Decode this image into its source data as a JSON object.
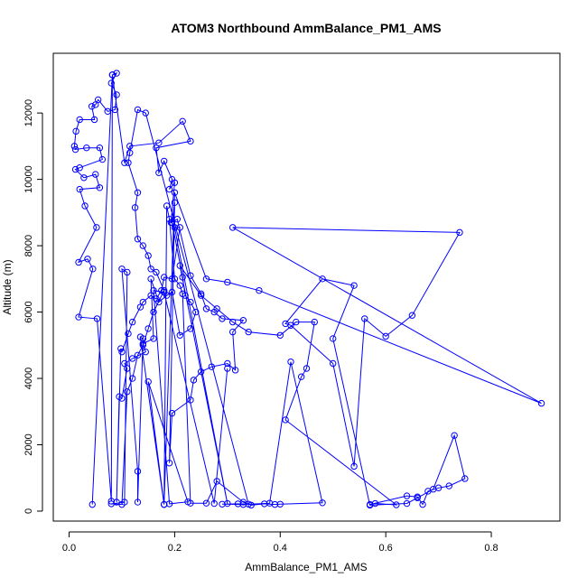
{
  "chart_data": {
    "type": "line",
    "title": "ATOM3 Northbound AmmBalance_PM1_AMS",
    "xlabel": "AmmBalance_PM1_AMS",
    "ylabel": "Altitude (m)",
    "xlim": [
      -0.03,
      0.93
    ],
    "ylim": [
      -300,
      13800
    ],
    "xticks": [
      0.0,
      0.2,
      0.4,
      0.6,
      0.8
    ],
    "xtick_labels": [
      "0.0",
      "0.2",
      "0.4",
      "0.6",
      "0.8"
    ],
    "yticks": [
      0,
      2000,
      4000,
      6000,
      8000,
      10000,
      12000
    ],
    "ytick_labels": [
      "0",
      "2000",
      "4000",
      "6000",
      "8000",
      "10000",
      "12000"
    ],
    "grid": false,
    "markers": "open-circle",
    "colors": {
      "series": "#0000ff",
      "axis": "#000000",
      "background": "#ffffff"
    },
    "series": [
      {
        "points": [
          [
            0.044,
            200
          ],
          [
            0.082,
            13150
          ],
          [
            0.09,
            13200
          ],
          [
            0.08,
            12900
          ],
          [
            0.09,
            12550
          ],
          [
            0.087,
            12100
          ],
          [
            0.073,
            12050
          ],
          [
            0.055,
            12400
          ],
          [
            0.05,
            12250
          ],
          [
            0.043,
            12200
          ],
          [
            0.048,
            11800
          ],
          [
            0.02,
            11800
          ],
          [
            0.013,
            11450
          ],
          [
            0.01,
            11000
          ],
          [
            0.012,
            10900
          ],
          [
            0.033,
            10950
          ],
          [
            0.058,
            10950
          ],
          [
            0.063,
            10600
          ],
          [
            0.02,
            10350
          ],
          [
            0.012,
            10300
          ],
          [
            0.028,
            10050
          ],
          [
            0.05,
            10150
          ],
          [
            0.058,
            9750
          ],
          [
            0.02,
            9700
          ],
          [
            0.03,
            9200
          ],
          [
            0.052,
            8550
          ],
          [
            0.018,
            7500
          ],
          [
            0.035,
            7600
          ],
          [
            0.045,
            7300
          ],
          [
            0.018,
            5850
          ],
          [
            0.053,
            5800
          ],
          [
            0.08,
            300
          ],
          [
            0.082,
            13150
          ],
          [
            0.105,
            10500
          ],
          [
            0.115,
            11000
          ],
          [
            0.17,
            11100
          ],
          [
            0.215,
            11750
          ],
          [
            0.23,
            11150
          ],
          [
            0.165,
            10950
          ],
          [
            0.17,
            10200
          ],
          [
            0.18,
            10550
          ],
          [
            0.195,
            10000
          ],
          [
            0.19,
            9700
          ],
          [
            0.2,
            9900
          ],
          [
            0.193,
            8700
          ],
          [
            0.205,
            8800
          ],
          [
            0.23,
            7100
          ],
          [
            0.25,
            6550
          ],
          [
            0.26,
            6100
          ],
          [
            0.275,
            6000
          ],
          [
            0.29,
            5800
          ],
          [
            0.33,
            5750
          ],
          [
            0.31,
            5400
          ],
          [
            0.315,
            4250
          ],
          [
            0.3,
            4450
          ],
          [
            0.27,
            4350
          ],
          [
            0.25,
            4200
          ],
          [
            0.236,
            3950
          ],
          [
            0.23,
            3350
          ],
          [
            0.195,
            2950
          ],
          [
            0.19,
            1450
          ],
          [
            0.2,
            9300
          ],
          [
            0.195,
            8700
          ],
          [
            0.215,
            7050
          ],
          [
            0.22,
            6500
          ],
          [
            0.23,
            6300
          ],
          [
            0.24,
            6000
          ],
          [
            0.23,
            5500
          ],
          [
            0.21,
            5300
          ],
          [
            0.195,
            6600
          ],
          [
            0.185,
            6500
          ],
          [
            0.17,
            6300
          ],
          [
            0.155,
            7000
          ],
          [
            0.16,
            5200
          ],
          [
            0.14,
            5050
          ],
          [
            0.145,
            4800
          ],
          [
            0.12,
            4600
          ],
          [
            0.105,
            4450
          ],
          [
            0.11,
            4300
          ],
          [
            0.1,
            3400
          ],
          [
            0.095,
            3450
          ],
          [
            0.09,
            270
          ],
          [
            0.098,
            4900
          ],
          [
            0.1,
            4800
          ],
          [
            0.112,
            5350
          ],
          [
            0.12,
            5700
          ],
          [
            0.135,
            6150
          ],
          [
            0.14,
            6300
          ],
          [
            0.155,
            6500
          ],
          [
            0.165,
            6400
          ],
          [
            0.175,
            6650
          ],
          [
            0.18,
            7050
          ],
          [
            0.195,
            7000
          ],
          [
            0.21,
            8550
          ],
          [
            0.2,
            8550
          ],
          [
            0.3,
            230
          ],
          [
            0.21,
            7400
          ],
          [
            0.25,
            6500
          ],
          [
            0.28,
            6100
          ],
          [
            0.31,
            5700
          ],
          [
            0.34,
            5400
          ],
          [
            0.4,
            5300
          ],
          [
            0.43,
            5700
          ],
          [
            0.465,
            5700
          ],
          [
            0.45,
            4300
          ],
          [
            0.44,
            4050
          ],
          [
            0.41,
            2750
          ],
          [
            0.62,
            190
          ],
          [
            0.58,
            230
          ],
          [
            0.57,
            200
          ],
          [
            0.64,
            460
          ],
          [
            0.66,
            430
          ],
          [
            0.67,
            200
          ],
          [
            0.68,
            600
          ],
          [
            0.7,
            700
          ],
          [
            0.72,
            760
          ],
          [
            0.75,
            980
          ],
          [
            0.73,
            2280
          ],
          [
            0.69,
            660
          ],
          [
            0.66,
            400
          ],
          [
            0.64,
            230
          ],
          [
            0.57,
            180
          ],
          [
            0.5,
            5200
          ],
          [
            0.54,
            6800
          ],
          [
            0.48,
            7000
          ],
          [
            0.41,
            5650
          ],
          [
            0.42,
            5600
          ],
          [
            0.5,
            4450
          ],
          [
            0.54,
            1350
          ],
          [
            0.56,
            5800
          ],
          [
            0.6,
            5270
          ],
          [
            0.65,
            5900
          ],
          [
            0.74,
            8400
          ],
          [
            0.31,
            8550
          ],
          [
            0.895,
            3250
          ],
          [
            0.36,
            6650
          ],
          [
            0.3,
            6900
          ],
          [
            0.26,
            7000
          ],
          [
            0.2,
            9600
          ],
          [
            0.18,
            200
          ],
          [
            0.185,
            9200
          ],
          [
            0.19,
            8800
          ],
          [
            0.2,
            7000
          ],
          [
            0.21,
            6800
          ],
          [
            0.215,
            6550
          ],
          [
            0.23,
            240
          ],
          [
            0.26,
            240
          ],
          [
            0.28,
            900
          ],
          [
            0.33,
            270
          ],
          [
            0.345,
            180
          ],
          [
            0.37,
            220
          ],
          [
            0.39,
            200
          ],
          [
            0.4,
            210
          ],
          [
            0.48,
            250
          ],
          [
            0.42,
            4500
          ],
          [
            0.38,
            240
          ],
          [
            0.33,
            200
          ],
          [
            0.29,
            210
          ],
          [
            0.32,
            220
          ],
          [
            0.34,
            210
          ],
          [
            0.145,
            12000
          ],
          [
            0.13,
            12100
          ],
          [
            0.115,
            10800
          ],
          [
            0.112,
            10500
          ],
          [
            0.13,
            9600
          ],
          [
            0.125,
            9150
          ],
          [
            0.13,
            8200
          ],
          [
            0.14,
            8000
          ],
          [
            0.15,
            7700
          ],
          [
            0.155,
            7300
          ],
          [
            0.165,
            7200
          ],
          [
            0.18,
            6650
          ],
          [
            0.16,
            6000
          ],
          [
            0.15,
            5500
          ],
          [
            0.14,
            5000
          ],
          [
            0.13,
            4700
          ],
          [
            0.12,
            4000
          ],
          [
            0.11,
            3600
          ],
          [
            0.1,
            200
          ],
          [
            0.08,
            220
          ],
          [
            0.105,
            270
          ],
          [
            0.11,
            7200
          ],
          [
            0.1,
            7300
          ],
          [
            0.13,
            1200
          ],
          [
            0.13,
            270
          ],
          [
            0.14,
            5200
          ],
          [
            0.135,
            5250
          ],
          [
            0.18,
            200
          ],
          [
            0.15,
            3900
          ],
          [
            0.225,
            280
          ],
          [
            0.19,
            220
          ],
          [
            0.16,
            6650
          ],
          [
            0.18,
            6600
          ],
          [
            0.275,
            230
          ],
          [
            0.3,
            4300
          ]
        ]
      }
    ]
  }
}
